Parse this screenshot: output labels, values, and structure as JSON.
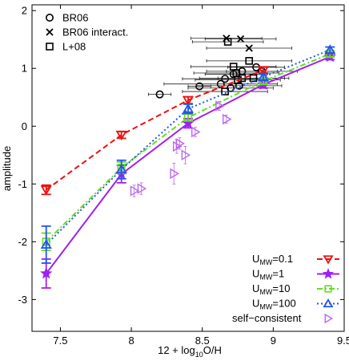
{
  "chart_data": {
    "type": "scatter",
    "xlabel": "12 + log10O/H",
    "xlabel_prefix": "12 + log",
    "xlabel_sub": "10",
    "xlabel_suffix": "O/H",
    "ylabel": "amplitude",
    "xlim": [
      7.3,
      9.5
    ],
    "ylim": [
      -3.55,
      2.1
    ],
    "xticks": [
      "7.5",
      "8",
      "8.5",
      "9",
      "9.5"
    ],
    "xtick_values": [
      7.5,
      8,
      8.5,
      9,
      9.5
    ],
    "yticks": [
      "2",
      "1",
      "0",
      "-1",
      "-2",
      "-3"
    ],
    "ytick_values": [
      2,
      1,
      0,
      -1,
      -2,
      -3
    ],
    "grid": false,
    "obs_legend_placement": "top-left",
    "model_legend_placement": "bottom-right",
    "obs_legend": [
      {
        "label": "BR06",
        "marker": "circle"
      },
      {
        "label": "BR06 interact.",
        "marker": "x"
      },
      {
        "label": "L+08",
        "marker": "square"
      }
    ],
    "observations": {
      "BR06": [
        {
          "x": 8.2,
          "y": 0.55,
          "xerr": 0.08
        },
        {
          "x": 8.48,
          "y": 0.69,
          "xerr": 0.08
        },
        {
          "x": 8.63,
          "y": 0.73,
          "xerr": 0.4
        },
        {
          "x": 8.66,
          "y": 0.82,
          "xerr": 0.3
        },
        {
          "x": 8.7,
          "y": 0.66,
          "xerr": 0.3
        },
        {
          "x": 8.72,
          "y": 0.9,
          "xerr": 0.2
        },
        {
          "x": 8.76,
          "y": 0.7,
          "xerr": 0.3
        },
        {
          "x": 8.78,
          "y": 0.95,
          "xerr": 0.25
        },
        {
          "x": 8.88,
          "y": 1.02,
          "xerr": 0.2
        },
        {
          "x": 8.92,
          "y": 0.95,
          "xerr": 0.25
        }
      ],
      "BR06 interact.": [
        {
          "x": 8.67,
          "y": 1.52,
          "xerr": 0.25
        },
        {
          "x": 8.77,
          "y": 1.51,
          "xerr": 0.25
        },
        {
          "x": 8.83,
          "y": 1.35,
          "xerr": 0.3
        }
      ],
      "L+08": [
        {
          "x": 8.68,
          "y": 1.46,
          "xerr": 0.25
        },
        {
          "x": 8.72,
          "y": 1.03,
          "xerr": 0.3
        },
        {
          "x": 8.74,
          "y": 0.92,
          "xerr": 0.3
        },
        {
          "x": 8.75,
          "y": 0.8,
          "xerr": 0.3
        },
        {
          "x": 8.66,
          "y": 0.6,
          "xerr": 0.3
        },
        {
          "x": 8.78,
          "y": 0.83,
          "xerr": 0.3
        },
        {
          "x": 8.83,
          "y": 1.13,
          "xerr": 0.3
        },
        {
          "x": 8.86,
          "y": 0.83,
          "xerr": 0.25
        }
      ]
    },
    "series": [
      {
        "name": "U_MW=0.1",
        "legend_main": "U",
        "legend_sub": "MW",
        "legend_rest": "=0.1",
        "color": "#ee1111",
        "marker": "triangle-down",
        "dash": "7,4",
        "points": [
          {
            "x": 7.4,
            "y": -1.1,
            "yerr": 0.08
          },
          {
            "x": 7.93,
            "y": -0.15,
            "yerr": 0.06
          },
          {
            "x": 8.4,
            "y": 0.45,
            "yerr": 0.06
          },
          {
            "x": 8.93,
            "y": 0.97,
            "yerr": 0.05
          }
        ]
      },
      {
        "name": "U_MW=1",
        "legend_main": "U",
        "legend_sub": "MW",
        "legend_rest": "=1",
        "color": "#a020f0",
        "marker": "star",
        "dash": "",
        "points": [
          {
            "x": 7.4,
            "y": -2.55,
            "yerr": 0.25
          },
          {
            "x": 7.93,
            "y": -0.83,
            "yerr": 0.15
          },
          {
            "x": 8.4,
            "y": 0.05,
            "yerr": 0.08
          },
          {
            "x": 8.93,
            "y": 0.72,
            "yerr": 0.06
          },
          {
            "x": 9.4,
            "y": 1.2,
            "yerr": 0.05
          }
        ]
      },
      {
        "name": "U_MW=10",
        "legend_main": "U",
        "legend_sub": "MW",
        "legend_rest": "=10",
        "color": "#66dd22",
        "marker": "square",
        "dash": "7,3,2,3",
        "points": [
          {
            "x": 7.4,
            "y": -2.0,
            "yerr": 0.15
          },
          {
            "x": 7.93,
            "y": -0.72,
            "yerr": 0.1
          },
          {
            "x": 8.4,
            "y": 0.15,
            "yerr": 0.06
          },
          {
            "x": 8.93,
            "y": 0.78,
            "yerr": 0.05
          },
          {
            "x": 9.4,
            "y": 1.25,
            "yerr": 0.05
          }
        ]
      },
      {
        "name": "U_MW=100",
        "legend_main": "U",
        "legend_sub": "MW",
        "legend_rest": "=100",
        "color": "#2255ee",
        "marker": "triangle-up",
        "dash": "2,3",
        "points": [
          {
            "x": 7.4,
            "y": -2.05,
            "yerr": 0.32
          },
          {
            "x": 7.93,
            "y": -0.75,
            "yerr": 0.16
          },
          {
            "x": 8.4,
            "y": 0.3,
            "yerr": 0.08
          },
          {
            "x": 8.93,
            "y": 0.85,
            "yerr": 0.05
          },
          {
            "x": 9.4,
            "y": 1.32,
            "yerr": 0.05
          }
        ]
      },
      {
        "name": "self-consistent",
        "legend_main": "self−consistent",
        "legend_sub": "",
        "legend_rest": "",
        "color": "#bb66ee",
        "marker": "triangle-right",
        "dash": "none",
        "points": [
          {
            "x": 8.02,
            "y": -1.12,
            "yerr": 0.1
          },
          {
            "x": 8.07,
            "y": -1.08,
            "yerr": 0.1
          },
          {
            "x": 8.3,
            "y": -0.82,
            "yerr": 0.18
          },
          {
            "x": 8.32,
            "y": -0.35,
            "yerr": 0.12
          },
          {
            "x": 8.34,
            "y": -0.3,
            "yerr": 0.1
          },
          {
            "x": 8.38,
            "y": -0.5,
            "yerr": 0.15
          },
          {
            "x": 8.45,
            "y": -0.1,
            "yerr": 0.08
          },
          {
            "x": 8.62,
            "y": 0.35,
            "yerr": 0.08
          },
          {
            "x": 8.67,
            "y": 0.12,
            "yerr": 0.07
          }
        ]
      }
    ]
  }
}
